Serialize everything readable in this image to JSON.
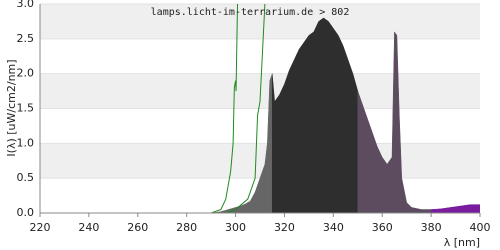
{
  "chart_data": {
    "type": "area",
    "title": "lamps.licht-im-terrarium.de > 802",
    "x_label": "λ [nm]",
    "y_label": "I(λ) [uW/cm2/nm]",
    "xlim": [
      220,
      400
    ],
    "xticks": [
      220,
      240,
      260,
      280,
      300,
      320,
      340,
      360,
      380,
      400
    ],
    "ylim": [
      0,
      3
    ],
    "yticks": [
      {
        "value": 0,
        "label": "0.0"
      },
      0.5,
      {
        "value": 1,
        "label": "1.0"
      },
      1.5,
      {
        "value": 2,
        "label": "2.0"
      },
      2.5,
      {
        "value": 3,
        "label": "3.0"
      }
    ],
    "grid": true,
    "series": [
      {
        "mark": "area",
        "color": "#666666",
        "x": [
          290,
          292,
          294,
          296,
          298,
          300,
          302,
          304,
          306,
          308,
          310,
          312,
          313,
          314,
          315
        ],
        "values": [
          0,
          0.01,
          0.02,
          0.04,
          0.06,
          0.08,
          0.1,
          0.13,
          0.17,
          0.3,
          0.5,
          0.7,
          1.0,
          1.9,
          2.0
        ]
      },
      {
        "mark": "area",
        "color": "#2e2e2e",
        "x": [
          315,
          316,
          318,
          320,
          322,
          324,
          326,
          328,
          330,
          332,
          334,
          336,
          338,
          340,
          342,
          344,
          346,
          348,
          350
        ],
        "values": [
          2.0,
          1.6,
          1.7,
          1.85,
          2.05,
          2.2,
          2.35,
          2.45,
          2.55,
          2.6,
          2.75,
          2.8,
          2.75,
          2.65,
          2.55,
          2.4,
          2.2,
          2.0,
          1.75
        ]
      },
      {
        "mark": "area",
        "color": "#5d4c60",
        "x": [
          350,
          352,
          354,
          356,
          358,
          360,
          362,
          364,
          365,
          366,
          367,
          368,
          370,
          372,
          376,
          380
        ],
        "values": [
          1.75,
          1.55,
          1.35,
          1.15,
          0.95,
          0.8,
          0.7,
          0.8,
          2.6,
          2.55,
          1.4,
          0.5,
          0.15,
          0.08,
          0.05,
          0.05
        ]
      },
      {
        "mark": "area",
        "color": "#7a1c9e",
        "x": [
          380,
          384,
          388,
          392,
          396,
          400
        ],
        "values": [
          0.05,
          0.06,
          0.08,
          0.1,
          0.12,
          0.12
        ]
      },
      {
        "mark": "line",
        "color": "#1f8a1f",
        "x": [
          290,
          294,
          296,
          298,
          299,
          299.5,
          300,
          300.2,
          300.8
        ],
        "values": [
          0,
          0.05,
          0.2,
          0.6,
          1.0,
          1.8,
          1.9,
          1.75,
          3.0
        ]
      },
      {
        "mark": "line",
        "color": "#1f8a1f",
        "x": [
          296,
          300,
          305,
          308,
          309,
          310,
          311,
          312
        ],
        "values": [
          0,
          0.05,
          0.2,
          0.5,
          1.4,
          1.6,
          2.3,
          3.0
        ]
      }
    ]
  }
}
